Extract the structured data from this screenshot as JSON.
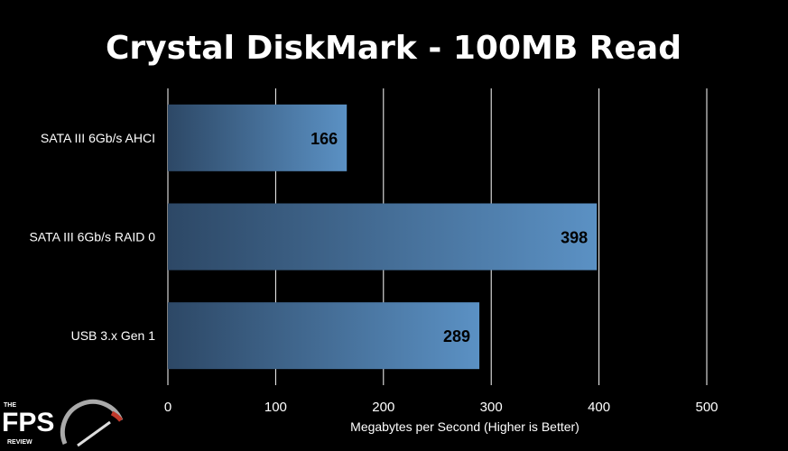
{
  "chart_data": {
    "type": "bar",
    "orientation": "horizontal",
    "title": "Crystal DiskMark - 100MB Read",
    "xlabel": "Megabytes per Second (Higher is Better)",
    "ylabel": "",
    "categories": [
      "SATA III 6Gb/s AHCI",
      "SATA III 6Gb/s RAID 0",
      "USB 3.x Gen 1"
    ],
    "values": [
      166,
      398,
      289
    ],
    "xlim": [
      0,
      500
    ],
    "ticks": [
      0,
      100,
      200,
      300,
      400,
      500
    ],
    "grid": true,
    "legend": "none",
    "colors": {
      "background": "#000000",
      "bar_dark": "#2e4a6b",
      "bar_light": "#5a8fc2",
      "grid": "#ffffff",
      "text": "#ffffff",
      "value_label": "#000000"
    }
  },
  "logo": {
    "top": "THE",
    "main": "FPS",
    "bottom": "REVIEW"
  }
}
